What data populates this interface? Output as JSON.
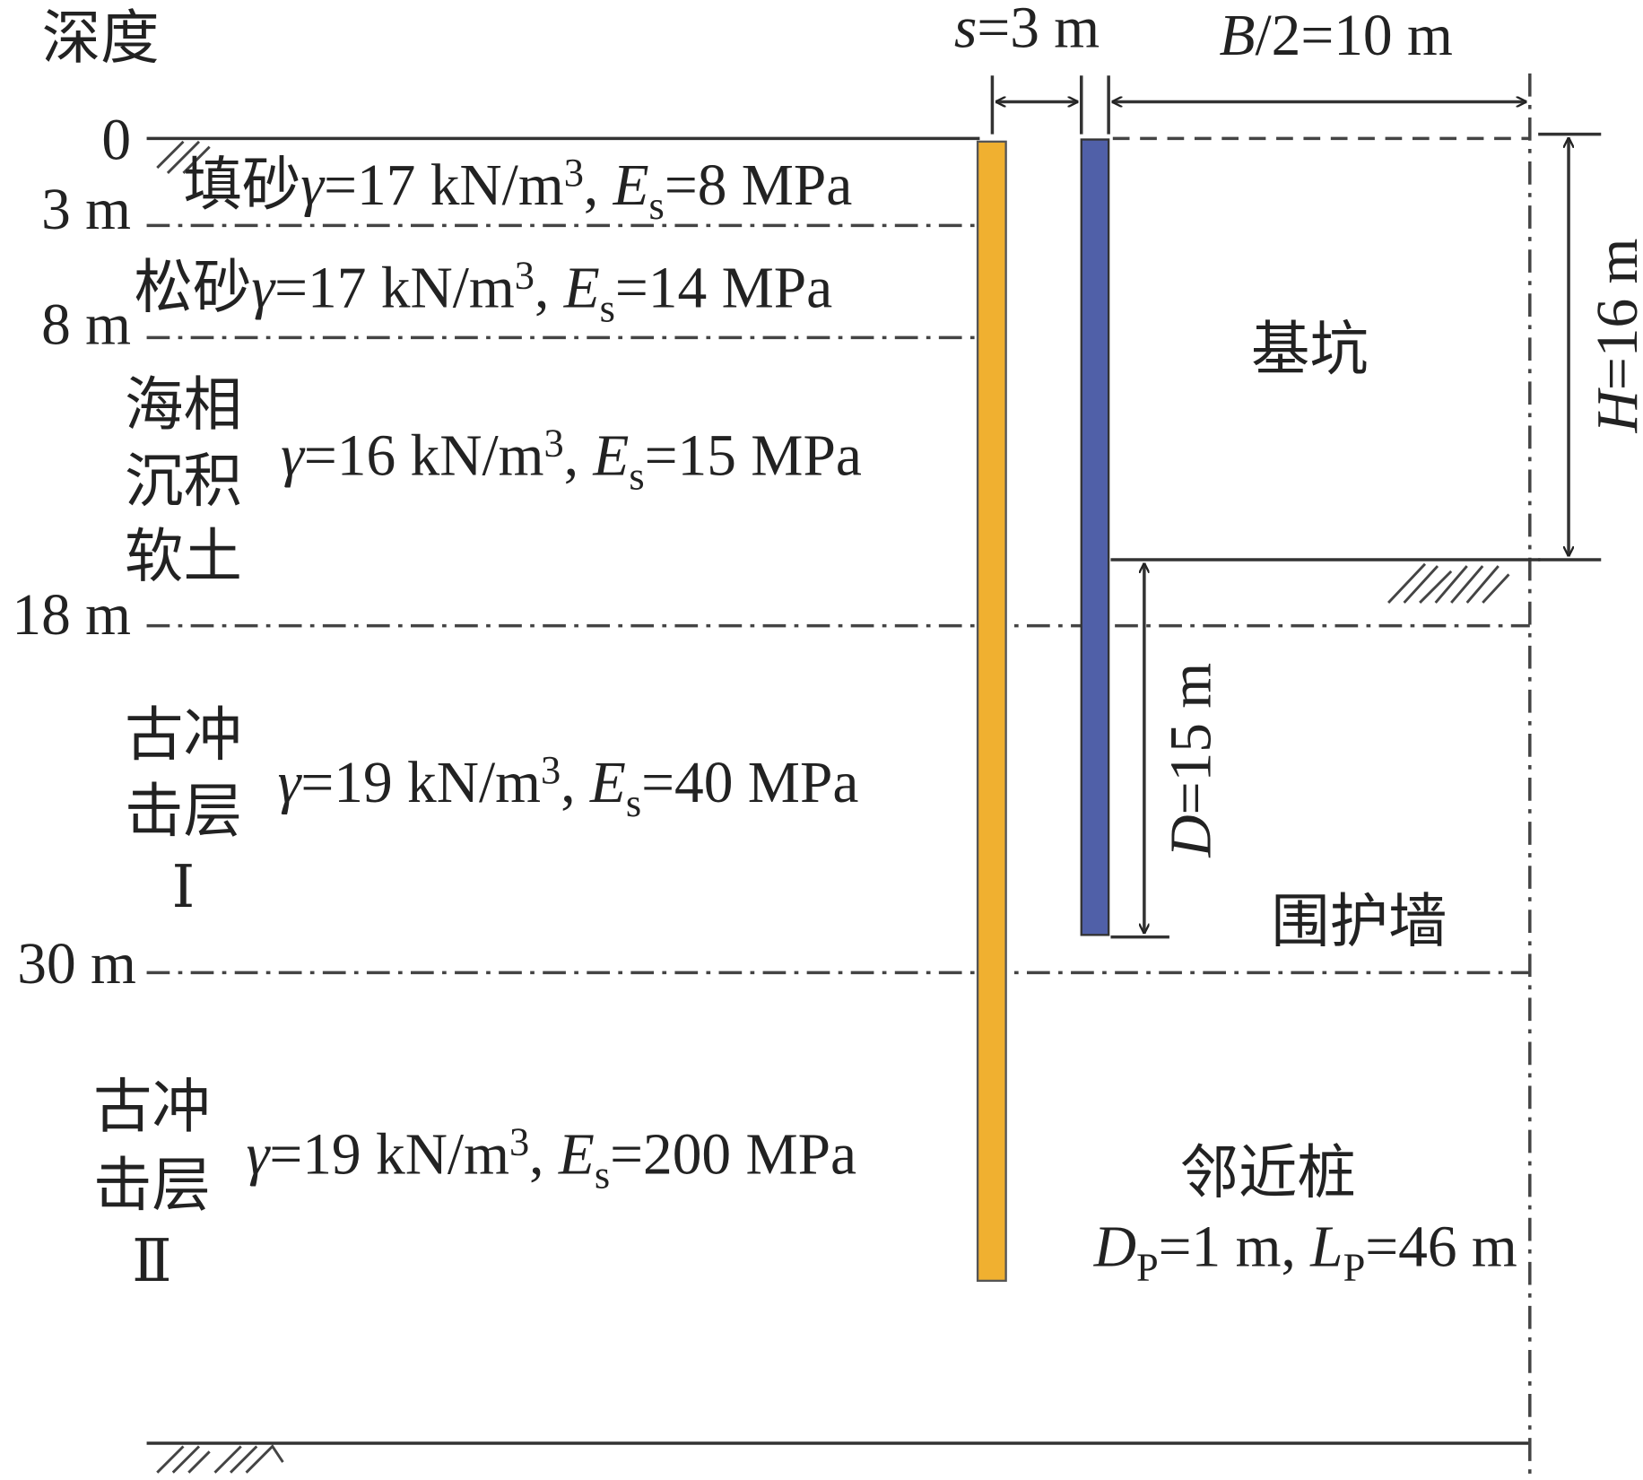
{
  "depth_axis": {
    "title": "深度",
    "ticks": [
      "0",
      "3 m",
      "8 m",
      "18 m",
      "30 m"
    ]
  },
  "dimensions": {
    "s": {
      "symbol": "s",
      "text": "=3 m"
    },
    "half_width": {
      "symbol": "B",
      "text": "/2=10 m"
    },
    "H": {
      "symbol": "H",
      "text": "=16 m"
    },
    "D": {
      "symbol": "D",
      "text": "=15 m"
    }
  },
  "layers": [
    {
      "name": [
        "填砂"
      ],
      "gamma": "γ",
      "gamma_text": "=17 kN/m",
      "exp": "3",
      "sep": ", ",
      "E": "E",
      "E_sub": "s",
      "E_text": "=8 MPa"
    },
    {
      "name": [
        "松砂"
      ],
      "gamma": "γ",
      "gamma_text": "=17 kN/m",
      "exp": "3",
      "sep": ", ",
      "E": "E",
      "E_sub": "s",
      "E_text": "=14 MPa"
    },
    {
      "name": [
        "海相",
        "沉积",
        "软土"
      ],
      "gamma": "γ",
      "gamma_text": "=16 kN/m",
      "exp": "3",
      "sep": ", ",
      "E": "E",
      "E_sub": "s",
      "E_text": "=15 MPa"
    },
    {
      "name": [
        "古冲",
        "击层",
        "Ⅰ"
      ],
      "gamma": "γ",
      "gamma_text": "=19 kN/m",
      "exp": "3",
      "sep": ", ",
      "E": "E",
      "E_sub": "s",
      "E_text": "=40 MPa"
    },
    {
      "name": [
        "古冲",
        "击层",
        "Ⅱ"
      ],
      "gamma": "γ",
      "gamma_text": "=19 kN/m",
      "exp": "3",
      "sep": ", ",
      "E": "E",
      "E_sub": "s",
      "E_text": "=200 MPa"
    }
  ],
  "labels": {
    "pit": "基坑",
    "wall": "围护墙",
    "pile": "邻近桩",
    "pile_params": {
      "D": "D",
      "D_sub": "P",
      "D_text": "=1 m, ",
      "L": "L",
      "L_sub": "P",
      "L_text": "=46 m"
    }
  }
}
